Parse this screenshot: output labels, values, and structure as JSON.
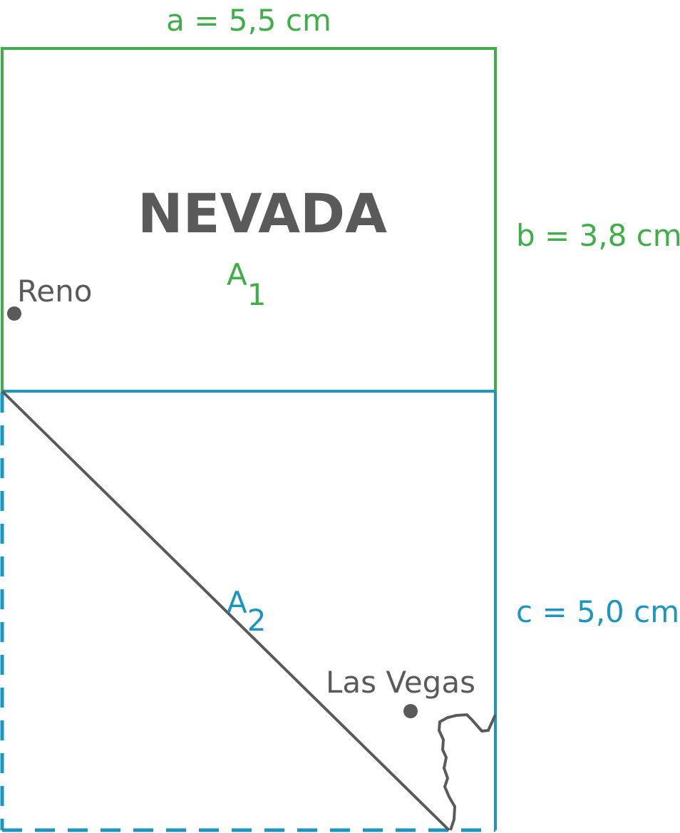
{
  "dimensions": {
    "a": "a = 5,5 cm",
    "b": "b = 3,8 cm",
    "c": "c = 5,0 cm"
  },
  "map": {
    "title": "NEVADA",
    "areas": [
      {
        "letter": "A",
        "index": "1"
      },
      {
        "letter": "A",
        "index": "2"
      }
    ],
    "cities": [
      {
        "label": "Reno"
      },
      {
        "label": "Las Vegas"
      }
    ]
  }
}
